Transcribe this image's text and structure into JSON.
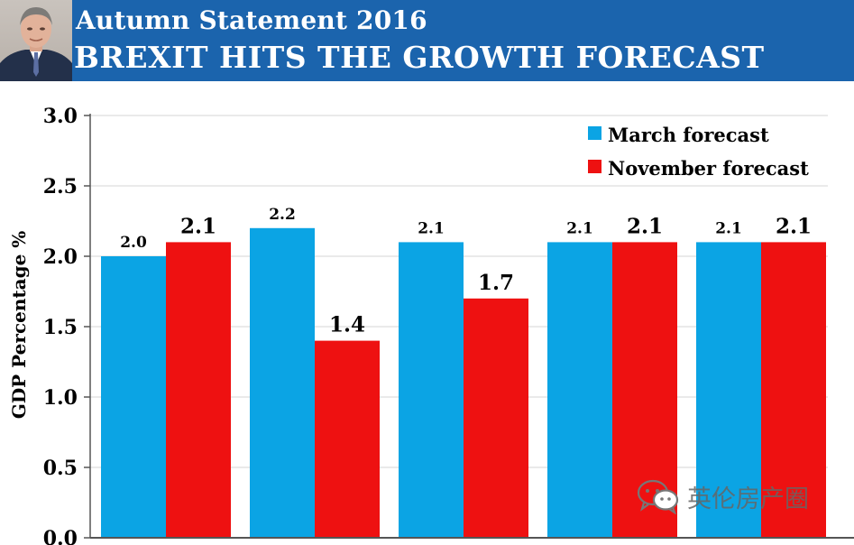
{
  "header": {
    "title": "Autumn Statement 2016",
    "subtitle": "BREXIT HITS THE GROWTH FORECAST",
    "banner_color": "#1b64ad"
  },
  "chart_data": {
    "type": "bar",
    "title": "Autumn Statement 2016",
    "subtitle": "BREXIT HITS THE GROWTH FORECAST",
    "xlabel": "",
    "ylabel": "GDP Percentage %",
    "ylim": [
      0,
      3
    ],
    "yticks": [
      0,
      0.5,
      1,
      1.5,
      2,
      2.5,
      3
    ],
    "ytick_labels": [
      "0.0",
      "0.5",
      "1.0",
      "1.5",
      "2.0",
      "2.5",
      "3.0"
    ],
    "grid": true,
    "legend_position": "top-right",
    "categories": [
      "",
      "",
      "",
      "",
      ""
    ],
    "series": [
      {
        "name": "March forecast",
        "color": "#0ba4e4",
        "values": [
          2.0,
          2.2,
          2.1,
          2.1,
          2.1
        ],
        "labels": [
          "2.0",
          "2.2",
          "2.1",
          "2.1",
          "2.1"
        ]
      },
      {
        "name": "November forecast",
        "color": "#ee1111",
        "values": [
          2.1,
          1.4,
          1.7,
          2.1,
          2.1
        ],
        "labels": [
          "2.1",
          "1.4",
          "1.7",
          "2.1",
          "2.1"
        ]
      }
    ]
  },
  "watermark": {
    "text": "英伦房产圈"
  }
}
